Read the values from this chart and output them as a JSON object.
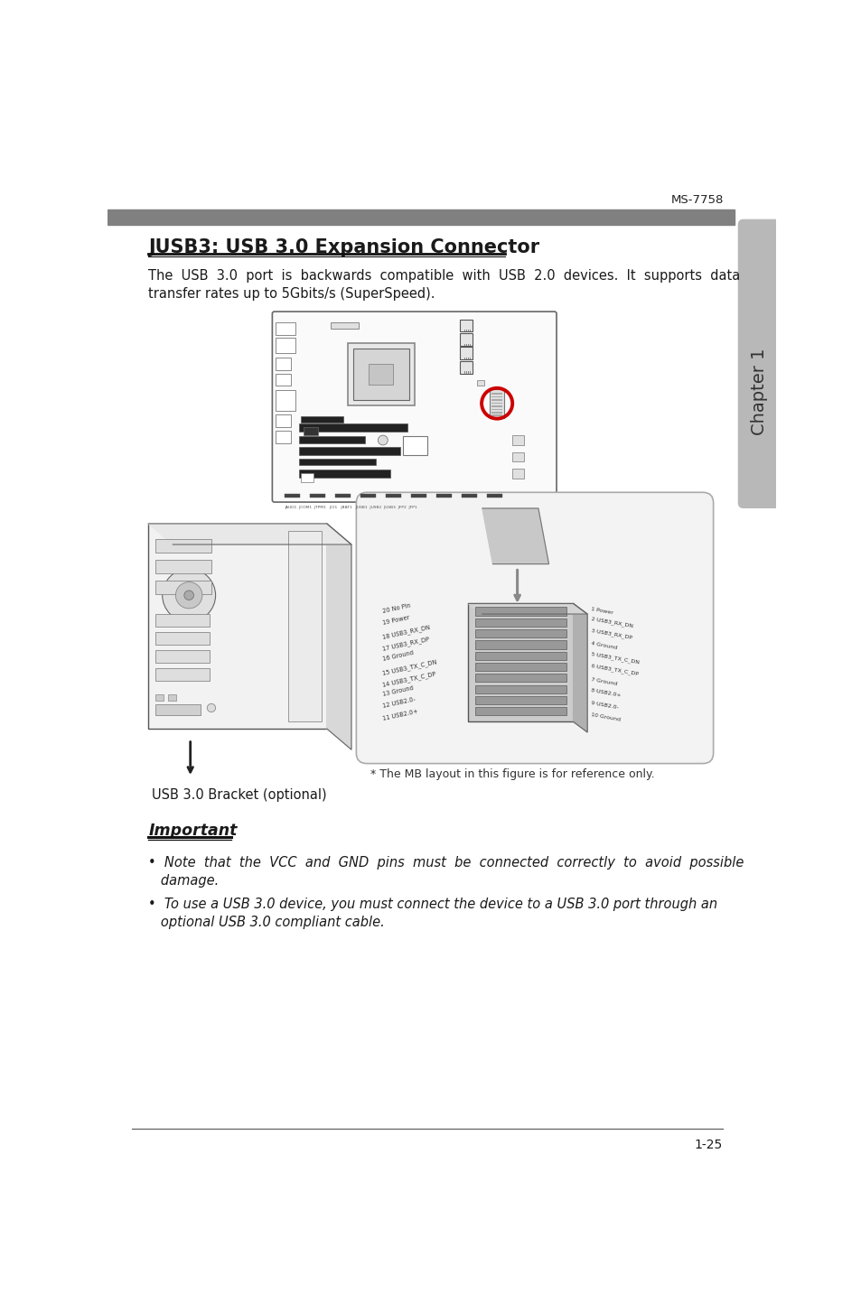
{
  "page_bg": "#ffffff",
  "header_bar_color": "#808080",
  "header_text": "MS-7758",
  "chapter_tab_color": "#b8b8b8",
  "chapter_text": "Chapter 1",
  "title": "JUSB3: USB 3.0 Expansion Connector",
  "body_text_line1": "The  USB  3.0  port  is  backwards  compatible  with  USB  2.0  devices.  It  supports  data",
  "body_text_line2": "transfer rates up to 5Gbits/s (SuperSpeed).",
  "bracket_label": "USB 3.0 Bracket (optional)",
  "mb_note": "* The MB layout in this figure is for reference only.",
  "important_label": "Important",
  "bullet1_line1": "•  Note  that  the  VCC  and  GND  pins  must  be  connected  correctly  to  avoid  possible",
  "bullet1_line2": "   damage.",
  "bullet2_line1": "•  To use a USB 3.0 device, you must connect the device to a USB 3.0 port through an",
  "bullet2_line2": "   optional USB 3.0 compliant cable.",
  "page_number": "1-25",
  "title_color": "#1a1a1a",
  "text_color": "#1a1a1a",
  "bottom_line_color": "#555555"
}
